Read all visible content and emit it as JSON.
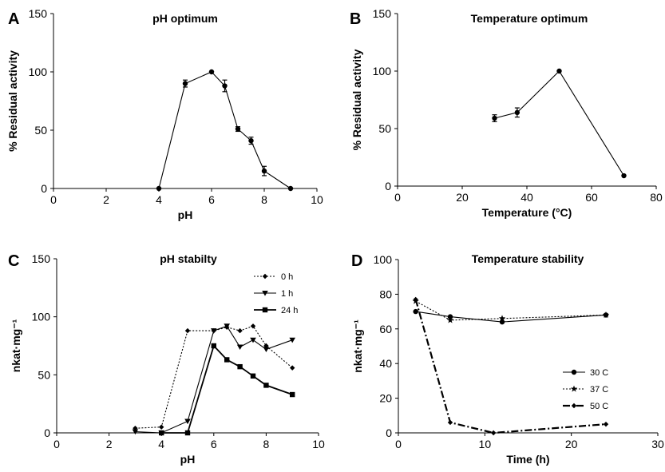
{
  "chart_data": [
    {
      "panel": "A",
      "type": "line",
      "title": "pH optimum",
      "xlabel": "pH",
      "ylabel": "% Residual activity",
      "xlim": [
        0,
        10
      ],
      "ylim": [
        0,
        150
      ],
      "xticks": [
        0,
        2,
        4,
        6,
        8,
        10
      ],
      "yticks": [
        0,
        50,
        100,
        150
      ],
      "grid": false,
      "series": [
        {
          "style": "solid",
          "marker": "circle",
          "errorbars": true,
          "points": [
            {
              "x": 4,
              "y": 0
            },
            {
              "x": 5,
              "y": 90,
              "err": 3
            },
            {
              "x": 6,
              "y": 100
            },
            {
              "x": 6.5,
              "y": 88,
              "err": 5
            },
            {
              "x": 7,
              "y": 51,
              "err": 2
            },
            {
              "x": 7.5,
              "y": 41,
              "err": 3
            },
            {
              "x": 8,
              "y": 15,
              "err": 4
            },
            {
              "x": 9,
              "y": 0
            }
          ]
        }
      ]
    },
    {
      "panel": "B",
      "type": "line",
      "title": "Temperature optimum",
      "xlabel": "Temperature (°C)",
      "ylabel": "% Residual activity",
      "xlim": [
        0,
        80
      ],
      "ylim": [
        0,
        150
      ],
      "xticks": [
        0,
        20,
        40,
        60,
        80
      ],
      "yticks": [
        0,
        50,
        100,
        150
      ],
      "grid": false,
      "series": [
        {
          "style": "solid",
          "marker": "circle",
          "errorbars": true,
          "points": [
            {
              "x": 30,
              "y": 59,
              "err": 3
            },
            {
              "x": 37,
              "y": 64,
              "err": 4
            },
            {
              "x": 50,
              "y": 100
            },
            {
              "x": 70,
              "y": 9
            }
          ]
        }
      ]
    },
    {
      "panel": "C",
      "type": "line",
      "title": "pH stabilty",
      "xlabel": "pH",
      "ylabel": "nkat·mg⁻¹",
      "xlim": [
        0,
        10
      ],
      "ylim": [
        0,
        150
      ],
      "xticks": [
        0,
        2,
        4,
        6,
        8,
        10
      ],
      "yticks": [
        0,
        50,
        100,
        150
      ],
      "grid": false,
      "legend_position": "top-right",
      "series": [
        {
          "name": "0 h",
          "style": "dotted",
          "marker": "diamond",
          "points": [
            {
              "x": 3,
              "y": 4
            },
            {
              "x": 4,
              "y": 5
            },
            {
              "x": 5,
              "y": 88
            },
            {
              "x": 6,
              "y": 88
            },
            {
              "x": 6.5,
              "y": 91
            },
            {
              "x": 7,
              "y": 88
            },
            {
              "x": 7.5,
              "y": 92
            },
            {
              "x": 8,
              "y": 75
            },
            {
              "x": 9,
              "y": 56
            }
          ]
        },
        {
          "name": "1 h",
          "style": "thin-solid",
          "marker": "triangle-down",
          "points": [
            {
              "x": 3,
              "y": 1
            },
            {
              "x": 4,
              "y": 0
            },
            {
              "x": 5,
              "y": 10
            },
            {
              "x": 6,
              "y": 88
            },
            {
              "x": 6.5,
              "y": 92
            },
            {
              "x": 7,
              "y": 74
            },
            {
              "x": 7.5,
              "y": 80
            },
            {
              "x": 8,
              "y": 72
            },
            {
              "x": 9,
              "y": 80
            }
          ]
        },
        {
          "name": "24 h",
          "style": "thick-solid",
          "marker": "square",
          "points": [
            {
              "x": 4,
              "y": 0
            },
            {
              "x": 5,
              "y": 0
            },
            {
              "x": 6,
              "y": 75
            },
            {
              "x": 6.5,
              "y": 63
            },
            {
              "x": 7,
              "y": 57
            },
            {
              "x": 7.5,
              "y": 49
            },
            {
              "x": 8,
              "y": 41
            },
            {
              "x": 9,
              "y": 33
            }
          ]
        }
      ]
    },
    {
      "panel": "D",
      "type": "line",
      "title": "Temperature stability",
      "xlabel": "Time (h)",
      "ylabel": "nkat·mg⁻¹",
      "xlim": [
        0,
        30
      ],
      "ylim": [
        0,
        100
      ],
      "xticks": [
        0,
        10,
        20,
        30
      ],
      "yticks": [
        0,
        20,
        40,
        60,
        80,
        100
      ],
      "grid": false,
      "legend_position": "center-right",
      "series": [
        {
          "name": "30 C",
          "style": "solid",
          "marker": "circle",
          "points": [
            {
              "x": 2,
              "y": 70
            },
            {
              "x": 6,
              "y": 67
            },
            {
              "x": 12,
              "y": 64
            },
            {
              "x": 24,
              "y": 68
            }
          ]
        },
        {
          "name": "37 C",
          "style": "dotted",
          "marker": "star",
          "points": [
            {
              "x": 2,
              "y": 76
            },
            {
              "x": 6,
              "y": 65
            },
            {
              "x": 12,
              "y": 66
            },
            {
              "x": 24,
              "y": 68
            }
          ]
        },
        {
          "name": "50 C",
          "style": "dashdot",
          "marker": "diamond",
          "points": [
            {
              "x": 2,
              "y": 77
            },
            {
              "x": 6,
              "y": 6
            },
            {
              "x": 11,
              "y": 0
            },
            {
              "x": 24,
              "y": 5
            }
          ]
        }
      ]
    }
  ]
}
